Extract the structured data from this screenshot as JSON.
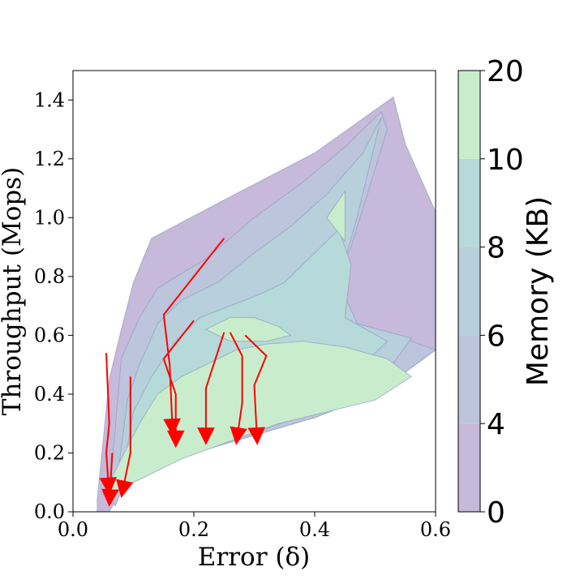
{
  "chart_data": {
    "type": "filled-contour",
    "xlabel": "Error (δ)",
    "ylabel": "Throughput (Mops)",
    "xlim": [
      0.0,
      0.6
    ],
    "ylim": [
      0.0,
      1.5
    ],
    "x_ticks": [
      "0.0",
      "0.2",
      "0.4",
      "0.6"
    ],
    "y_ticks": [
      "0.0",
      "0.2",
      "0.4",
      "0.6",
      "0.8",
      "1.0",
      "1.2",
      "1.4"
    ],
    "x_tick_values": [
      0.0,
      0.2,
      0.4,
      0.6
    ],
    "y_tick_values": [
      0.0,
      0.2,
      0.4,
      0.6,
      0.8,
      1.0,
      1.2,
      1.4
    ],
    "colorbar": {
      "label": "Memory (KB)",
      "levels": [
        0,
        4,
        6,
        8,
        10,
        20
      ],
      "tick_labels": [
        "0",
        "4",
        "6",
        "8",
        "10",
        "20"
      ],
      "colors": [
        "#c6b9d9",
        "#bcc5dc",
        "#b8cfdc",
        "#b6d9d9",
        "#c9edcc"
      ]
    },
    "regions": [
      {
        "level": 0,
        "points": [
          [
            0.04,
            0.04
          ],
          [
            0.06,
            0.45
          ],
          [
            0.08,
            0.62
          ],
          [
            0.1,
            0.78
          ],
          [
            0.13,
            0.93
          ],
          [
            0.25,
            1.06
          ],
          [
            0.4,
            1.22
          ],
          [
            0.53,
            1.41
          ],
          [
            0.55,
            1.25
          ],
          [
            0.6,
            1.02
          ],
          [
            0.6,
            0.55
          ],
          [
            0.5,
            0.4
          ],
          [
            0.4,
            0.32
          ],
          [
            0.3,
            0.26
          ],
          [
            0.2,
            0.2
          ],
          [
            0.12,
            0.15
          ],
          [
            0.08,
            0.07
          ],
          [
            0.06,
            0.0
          ],
          [
            0.04,
            0.0
          ]
        ]
      },
      {
        "level": 4,
        "points": [
          [
            0.06,
            0.05
          ],
          [
            0.08,
            0.52
          ],
          [
            0.11,
            0.66
          ],
          [
            0.14,
            0.76
          ],
          [
            0.18,
            0.81
          ],
          [
            0.22,
            0.86
          ],
          [
            0.3,
            1.0
          ],
          [
            0.38,
            1.12
          ],
          [
            0.45,
            1.24
          ],
          [
            0.51,
            1.36
          ],
          [
            0.52,
            1.3
          ],
          [
            0.46,
            0.9
          ],
          [
            0.42,
            0.7
          ],
          [
            0.48,
            0.62
          ],
          [
            0.56,
            0.58
          ],
          [
            0.6,
            0.55
          ],
          [
            0.5,
            0.4
          ],
          [
            0.4,
            0.32
          ],
          [
            0.3,
            0.26
          ],
          [
            0.2,
            0.2
          ],
          [
            0.12,
            0.15
          ],
          [
            0.08,
            0.07
          ],
          [
            0.07,
            0.02
          ]
        ]
      },
      {
        "level": 6,
        "points": [
          [
            0.07,
            0.06
          ],
          [
            0.09,
            0.38
          ],
          [
            0.11,
            0.5
          ],
          [
            0.14,
            0.64
          ],
          [
            0.18,
            0.72
          ],
          [
            0.24,
            0.78
          ],
          [
            0.3,
            0.88
          ],
          [
            0.36,
            0.97
          ],
          [
            0.42,
            1.08
          ],
          [
            0.48,
            1.22
          ],
          [
            0.51,
            1.34
          ],
          [
            0.47,
            1.0
          ],
          [
            0.44,
            0.78
          ],
          [
            0.47,
            0.64
          ],
          [
            0.56,
            0.59
          ],
          [
            0.5,
            0.42
          ],
          [
            0.4,
            0.34
          ],
          [
            0.3,
            0.27
          ],
          [
            0.2,
            0.21
          ],
          [
            0.12,
            0.16
          ],
          [
            0.08,
            0.08
          ]
        ]
      },
      {
        "level": 8,
        "points": [
          [
            0.08,
            0.1
          ],
          [
            0.1,
            0.34
          ],
          [
            0.13,
            0.46
          ],
          [
            0.17,
            0.58
          ],
          [
            0.21,
            0.66
          ],
          [
            0.26,
            0.7
          ],
          [
            0.31,
            0.74
          ],
          [
            0.35,
            0.78
          ],
          [
            0.4,
            0.88
          ],
          [
            0.44,
            0.96
          ],
          [
            0.46,
            0.84
          ],
          [
            0.45,
            0.66
          ],
          [
            0.52,
            0.58
          ],
          [
            0.46,
            0.46
          ],
          [
            0.4,
            0.36
          ],
          [
            0.3,
            0.28
          ],
          [
            0.2,
            0.22
          ],
          [
            0.12,
            0.17
          ]
        ]
      },
      {
        "level": 10,
        "points": [
          [
            0.05,
            0.06
          ],
          [
            0.08,
            0.18
          ],
          [
            0.11,
            0.3
          ],
          [
            0.14,
            0.4
          ],
          [
            0.18,
            0.46
          ],
          [
            0.22,
            0.5
          ],
          [
            0.27,
            0.55
          ],
          [
            0.32,
            0.57
          ],
          [
            0.38,
            0.58
          ],
          [
            0.45,
            0.56
          ],
          [
            0.52,
            0.52
          ],
          [
            0.56,
            0.46
          ],
          [
            0.5,
            0.38
          ],
          [
            0.42,
            0.34
          ],
          [
            0.34,
            0.3
          ],
          [
            0.26,
            0.24
          ],
          [
            0.18,
            0.18
          ],
          [
            0.12,
            0.12
          ],
          [
            0.08,
            0.08
          ]
        ]
      },
      {
        "level": 10,
        "points": [
          [
            0.42,
            1.0
          ],
          [
            0.45,
            1.09
          ],
          [
            0.45,
            0.92
          ]
        ]
      },
      {
        "level": 10,
        "points": [
          [
            0.22,
            0.62
          ],
          [
            0.26,
            0.66
          ],
          [
            0.3,
            0.66
          ],
          [
            0.34,
            0.63
          ],
          [
            0.36,
            0.6
          ],
          [
            0.32,
            0.58
          ],
          [
            0.26,
            0.58
          ]
        ]
      }
    ],
    "trajectories": [
      {
        "points": [
          [
            0.25,
            0.93
          ],
          [
            0.15,
            0.67
          ],
          [
            0.16,
            0.5
          ],
          [
            0.165,
            0.26
          ]
        ]
      },
      {
        "points": [
          [
            0.2,
            0.65
          ],
          [
            0.15,
            0.52
          ],
          [
            0.17,
            0.4
          ],
          [
            0.17,
            0.22
          ]
        ]
      },
      {
        "points": [
          [
            0.055,
            0.54
          ],
          [
            0.06,
            0.3
          ],
          [
            0.055,
            0.2
          ],
          [
            0.06,
            0.06
          ]
        ]
      },
      {
        "points": [
          [
            0.095,
            0.46
          ],
          [
            0.095,
            0.2
          ],
          [
            0.08,
            0.05
          ]
        ]
      },
      {
        "points": [
          [
            0.25,
            0.61
          ],
          [
            0.22,
            0.42
          ],
          [
            0.22,
            0.23
          ]
        ]
      },
      {
        "points": [
          [
            0.26,
            0.61
          ],
          [
            0.28,
            0.53
          ],
          [
            0.28,
            0.37
          ],
          [
            0.27,
            0.23
          ]
        ]
      },
      {
        "points": [
          [
            0.285,
            0.6
          ],
          [
            0.32,
            0.53
          ],
          [
            0.3,
            0.43
          ],
          [
            0.305,
            0.23
          ]
        ]
      },
      {
        "points": [
          [
            0.065,
            0.2
          ],
          [
            0.06,
            0.02
          ]
        ]
      }
    ]
  }
}
